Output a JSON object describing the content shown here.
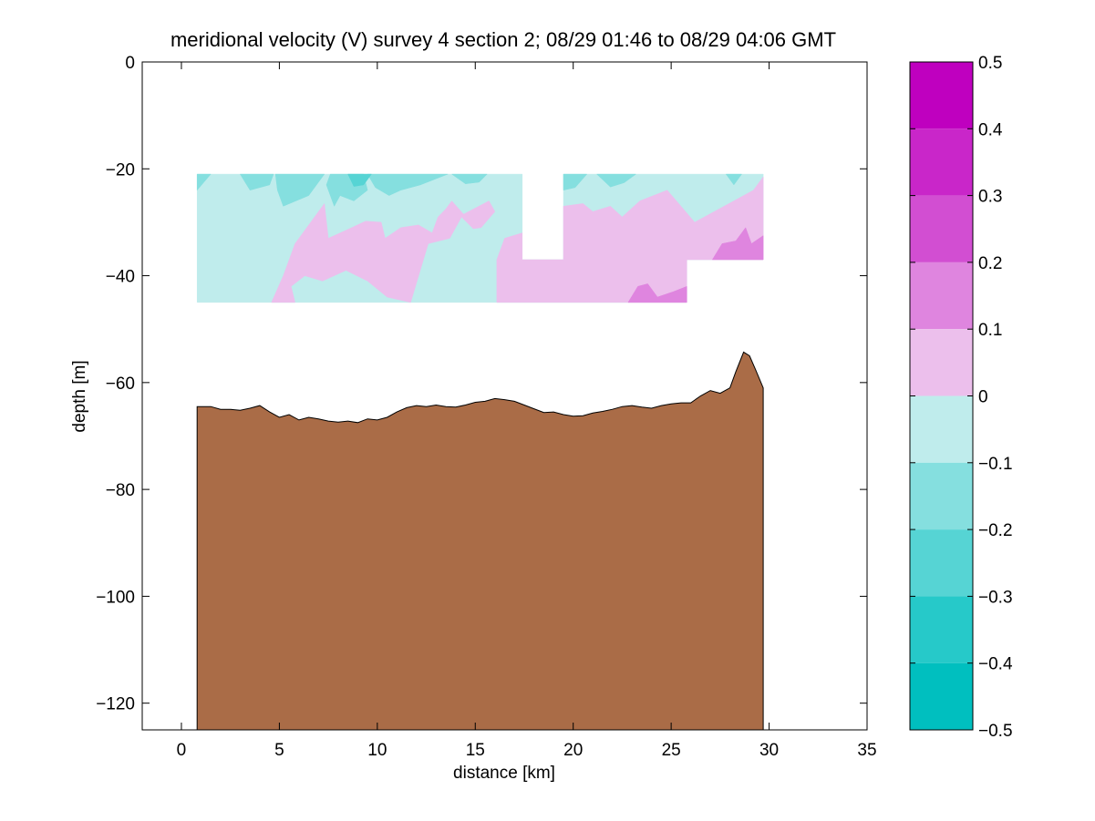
{
  "chart_data": {
    "type": "contour",
    "title": "meridional velocity (V) survey 4 section 2; 08/29 01:46 to 08/29 04:06 GMT",
    "xlabel": "distance [km]",
    "ylabel": "depth [m]",
    "xlim": [
      -2,
      35
    ],
    "ylim": [
      -125,
      0
    ],
    "xticks": [
      0,
      5,
      10,
      15,
      20,
      25,
      30,
      35
    ],
    "yticks": [
      0,
      -20,
      -40,
      -60,
      -80,
      -100,
      -120
    ],
    "grid": false,
    "colorbar": {
      "range": [
        -0.5,
        0.5
      ],
      "ticks": [
        0.5,
        0.4,
        0.3,
        0.2,
        0.1,
        0,
        -0.1,
        -0.2,
        -0.3,
        -0.4,
        -0.5
      ],
      "tick_labels": [
        "0.5",
        "0.4",
        "0.3",
        "0.2",
        "0.1",
        "0",
        "−0.1",
        "−0.2",
        "−0.3",
        "−0.4",
        "−0.5"
      ],
      "levels": [
        {
          "range": [
            0.4,
            0.5
          ],
          "color": "#bf00bf"
        },
        {
          "range": [
            0.3,
            0.4
          ],
          "color": "#c926c9"
        },
        {
          "range": [
            0.2,
            0.3
          ],
          "color": "#d24ed2"
        },
        {
          "range": [
            0.1,
            0.2
          ],
          "color": "#df85df"
        },
        {
          "range": [
            0.0,
            0.1
          ],
          "color": "#ecbfec"
        },
        {
          "range": [
            -0.1,
            0.0
          ],
          "color": "#bfecec"
        },
        {
          "range": [
            -0.2,
            -0.1
          ],
          "color": "#85dfdf"
        },
        {
          "range": [
            -0.3,
            -0.2
          ],
          "color": "#56d4d4"
        },
        {
          "range": [
            -0.4,
            -0.3
          ],
          "color": "#26c9c9"
        },
        {
          "range": [
            -0.5,
            -0.4
          ],
          "color": "#00bfbf"
        }
      ]
    },
    "data_region": {
      "main": {
        "x": [
          0.8,
          29.7
        ],
        "depth": [
          -21,
          -45
        ]
      },
      "gap_x": [
        17.4,
        19.5
      ],
      "gap_depth_bottom": -37,
      "right_cut": {
        "x": [
          25.8,
          29.7
        ],
        "depth_bottom": -37
      }
    },
    "velocity_patches": [
      {
        "level": -0.05,
        "poly": [
          [
            0.8,
            -21
          ],
          [
            17.4,
            -21
          ],
          [
            17.4,
            -37
          ],
          [
            16.1,
            -37
          ],
          [
            16.1,
            -45
          ],
          [
            0.8,
            -45
          ]
        ]
      },
      {
        "level": -0.05,
        "poly": [
          [
            19.5,
            -21
          ],
          [
            29.7,
            -21
          ],
          [
            29.7,
            -37
          ],
          [
            25.8,
            -37
          ],
          [
            25.8,
            -45
          ],
          [
            16.1,
            -45
          ],
          [
            16.1,
            -37
          ],
          [
            19.5,
            -37
          ]
        ]
      },
      {
        "level": -0.15,
        "poly": [
          [
            0.8,
            -21
          ],
          [
            1.5,
            -21
          ],
          [
            0.8,
            -24
          ]
        ]
      },
      {
        "level": -0.15,
        "poly": [
          [
            3,
            -21
          ],
          [
            4.7,
            -21
          ],
          [
            4.5,
            -23
          ],
          [
            3.5,
            -24
          ]
        ]
      },
      {
        "level": -0.15,
        "poly": [
          [
            4.8,
            -21
          ],
          [
            7.3,
            -21
          ],
          [
            6.5,
            -25
          ],
          [
            5.2,
            -27
          ],
          [
            4.9,
            -24
          ]
        ]
      },
      {
        "level": -0.15,
        "poly": [
          [
            7.6,
            -21
          ],
          [
            9.3,
            -21
          ],
          [
            9.5,
            -24
          ],
          [
            8.8,
            -26
          ],
          [
            8.1,
            -25
          ],
          [
            7.8,
            -27
          ],
          [
            7.4,
            -23
          ]
        ]
      },
      {
        "level": -0.15,
        "poly": [
          [
            9.5,
            -21
          ],
          [
            13.6,
            -21
          ],
          [
            12.9,
            -22
          ],
          [
            12.2,
            -23
          ],
          [
            11.2,
            -24
          ],
          [
            10.6,
            -25
          ],
          [
            9.9,
            -23.5
          ]
        ]
      },
      {
        "level": -0.15,
        "poly": [
          [
            13.8,
            -21
          ],
          [
            15.6,
            -21
          ],
          [
            15.2,
            -22.5
          ],
          [
            14.5,
            -22.8
          ]
        ]
      },
      {
        "level": -0.15,
        "poly": [
          [
            19.5,
            -21
          ],
          [
            20.7,
            -21
          ],
          [
            20.1,
            -23.5
          ],
          [
            19.5,
            -24
          ]
        ]
      },
      {
        "level": -0.15,
        "poly": [
          [
            21.2,
            -21
          ],
          [
            23.2,
            -21
          ],
          [
            22.6,
            -22.6
          ],
          [
            21.9,
            -23.4
          ]
        ]
      },
      {
        "level": -0.15,
        "poly": [
          [
            27.8,
            -21
          ],
          [
            28.6,
            -21
          ],
          [
            28.2,
            -23
          ]
        ]
      },
      {
        "level": -0.25,
        "poly": [
          [
            8.5,
            -21
          ],
          [
            9.7,
            -21
          ],
          [
            9.3,
            -23
          ],
          [
            8.8,
            -23.3
          ]
        ]
      },
      {
        "level": 0.05,
        "poly": [
          [
            4.6,
            -45
          ],
          [
            5.2,
            -40
          ],
          [
            5.8,
            -34
          ],
          [
            6.6,
            -30
          ],
          [
            7.3,
            -26.5
          ],
          [
            7.5,
            -33
          ],
          [
            8.7,
            -31
          ],
          [
            9.4,
            -29.8
          ],
          [
            10.2,
            -30
          ],
          [
            10.4,
            -33
          ],
          [
            11.2,
            -31
          ],
          [
            12.1,
            -30.5
          ],
          [
            12.8,
            -32
          ],
          [
            13.1,
            -29
          ],
          [
            13.5,
            -27.5
          ],
          [
            13.8,
            -26
          ],
          [
            14.4,
            -28.5
          ],
          [
            15.7,
            -26
          ],
          [
            16,
            -28
          ],
          [
            15.3,
            -31
          ],
          [
            14.9,
            -31.2
          ],
          [
            14.3,
            -29
          ],
          [
            13.7,
            -33
          ],
          [
            12.6,
            -34
          ],
          [
            11.7,
            -45
          ],
          [
            10.5,
            -44
          ],
          [
            9.5,
            -41
          ],
          [
            8.4,
            -39
          ],
          [
            7.2,
            -41
          ],
          [
            6.3,
            -40
          ],
          [
            5.6,
            -42
          ],
          [
            5.8,
            -45
          ]
        ]
      },
      {
        "level": 0.05,
        "poly": [
          [
            16.1,
            -37
          ],
          [
            16.5,
            -33
          ],
          [
            17.4,
            -32
          ],
          [
            17.4,
            -37
          ]
        ]
      },
      {
        "level": 0.05,
        "poly": [
          [
            19.5,
            -37
          ],
          [
            19.5,
            -27
          ],
          [
            20.5,
            -26.5
          ],
          [
            21,
            -28
          ],
          [
            21.9,
            -27
          ],
          [
            22.5,
            -29
          ],
          [
            23.4,
            -26
          ],
          [
            24.8,
            -24
          ],
          [
            25.5,
            -27
          ],
          [
            26.2,
            -30
          ],
          [
            27.2,
            -28
          ],
          [
            28.2,
            -26
          ],
          [
            29.2,
            -24
          ],
          [
            29.7,
            -21.5
          ],
          [
            29.7,
            -37
          ],
          [
            25.8,
            -37
          ],
          [
            25.8,
            -45
          ],
          [
            16.1,
            -45
          ],
          [
            16.1,
            -37
          ]
        ]
      },
      {
        "level": 0.15,
        "poly": [
          [
            27.1,
            -37
          ],
          [
            27.6,
            -34
          ],
          [
            28.3,
            -33.5
          ],
          [
            28.8,
            -31
          ],
          [
            29.1,
            -34
          ],
          [
            29.7,
            -32.5
          ],
          [
            29.7,
            -37
          ]
        ]
      },
      {
        "level": 0.15,
        "poly": [
          [
            22.8,
            -45
          ],
          [
            23.3,
            -42
          ],
          [
            23.8,
            -41.5
          ],
          [
            24.3,
            -44
          ],
          [
            25.1,
            -43
          ],
          [
            25.8,
            -42
          ],
          [
            25.8,
            -45
          ]
        ]
      }
    ],
    "bathymetry": {
      "x": [
        0.8,
        1.5,
        2,
        2.5,
        3,
        3.5,
        4,
        4.5,
        5,
        5.5,
        6,
        6.5,
        7,
        7.5,
        8,
        8.5,
        9,
        9.5,
        10,
        10.5,
        11,
        11.5,
        12,
        12.5,
        13,
        13.5,
        14,
        14.5,
        15,
        15.5,
        16,
        16.5,
        17,
        17.5,
        18,
        18.5,
        19,
        19.5,
        20,
        20.5,
        21,
        21.5,
        22,
        22.5,
        23,
        23.5,
        24,
        24.5,
        25,
        25.5,
        26,
        26.5,
        27,
        27.5,
        28,
        28.3,
        28.7,
        29,
        29.3,
        29.7
      ],
      "depth": [
        -64.5,
        -64.5,
        -65,
        -65,
        -65.2,
        -64.8,
        -64.3,
        -65.5,
        -66.5,
        -66,
        -67,
        -66.5,
        -66.8,
        -67.2,
        -67.4,
        -67.2,
        -67.5,
        -66.8,
        -67,
        -66.5,
        -65.5,
        -64.7,
        -64.3,
        -64.5,
        -64.2,
        -64.5,
        -64.6,
        -64.2,
        -63.7,
        -63.5,
        -63,
        -63.2,
        -63.5,
        -64.2,
        -64.9,
        -65.6,
        -65.5,
        -66,
        -66.3,
        -66.2,
        -65.7,
        -65.4,
        -65,
        -64.5,
        -64.3,
        -64.6,
        -64.8,
        -64.3,
        -64,
        -63.8,
        -63.8,
        -62.5,
        -61.5,
        -62,
        -61,
        -58,
        -54.3,
        -55,
        -57.5,
        -61
      ]
    },
    "bathymetry_color": "#aa6c47"
  }
}
